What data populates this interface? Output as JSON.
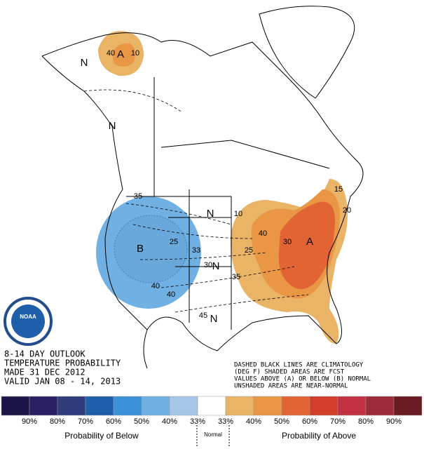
{
  "header": {
    "lines": [
      "8-14 DAY OUTLOOK",
      "TEMPERATURE PROBABILITY",
      "MADE  31 DEC 2012",
      "VALID  JAN 08 - 14, 2013"
    ]
  },
  "note": {
    "lines": [
      "DASHED BLACK LINES ARE CLIMATOLOGY",
      "(DEG F) SHADED AREAS ARE FCST",
      "VALUES ABOVE (A) OR BELOW (B) NORMAL",
      "UNSHADED AREAS ARE NEAR-NORMAL"
    ]
  },
  "logo": "NOAA",
  "map_labels": [
    "A",
    "10",
    "40",
    "N",
    "N",
    "35",
    "B",
    "25",
    "33",
    "40",
    "40",
    "N",
    "10",
    "30",
    "N",
    "45",
    "N",
    "40",
    "25",
    "35",
    "30",
    "A",
    "20",
    "15"
  ],
  "legend": {
    "colors": [
      "#1c1648",
      "#2a1f62",
      "#2f3d7c",
      "#1d5fa8",
      "#3c92d8",
      "#70b0e2",
      "#a6c6e8",
      "#ffffff",
      "#eab466",
      "#e99645",
      "#e26434",
      "#d13d2a",
      "#c33044",
      "#9e2a3a",
      "#6b1b22"
    ],
    "labels": [
      "90%",
      "80%",
      "70%",
      "60%",
      "50%",
      "40%",
      "33%",
      "33%",
      "40%",
      "50%",
      "60%",
      "70%",
      "80%",
      "90%"
    ],
    "below": "Probability of Below",
    "normal": "Normal",
    "above": "Probability of Above"
  }
}
